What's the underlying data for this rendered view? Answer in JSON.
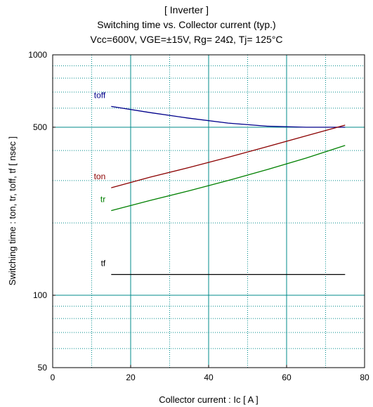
{
  "chart_data": {
    "type": "line",
    "title_lines": [
      "[ Inverter ]",
      "Switching time  vs.  Collector current  (typ.)",
      "Vcc=600V, VGE=±15V, Rg= 24Ω, Tj= 125°C"
    ],
    "xlabel": "Collector current  :  Ic  [ A ]",
    "ylabel": "Switching time  :  ton, tr, toff, tf  [ nsec ]",
    "xlim": [
      0,
      80
    ],
    "ylim": [
      50,
      1000
    ],
    "yscale": "log",
    "x_ticks": [
      "0",
      "20",
      "40",
      "60",
      "80"
    ],
    "x_tick_values": [
      0,
      20,
      40,
      60,
      80
    ],
    "y_ticks": [
      "50",
      "100",
      "500",
      "1000"
    ],
    "y_tick_values": [
      50,
      100,
      500,
      1000
    ],
    "grid": true,
    "series": [
      {
        "name": "toff",
        "color": "#00008b",
        "x": [
          15,
          25,
          35,
          45,
          55,
          65,
          75
        ],
        "y": [
          610,
          575,
          545,
          520,
          505,
          500,
          500
        ]
      },
      {
        "name": "ton",
        "color": "#8b0000",
        "x": [
          15,
          25,
          35,
          45,
          55,
          65,
          75
        ],
        "y": [
          280,
          310,
          340,
          375,
          415,
          460,
          510
        ]
      },
      {
        "name": "tr",
        "color": "#008000",
        "x": [
          15,
          25,
          35,
          45,
          55,
          65,
          75
        ],
        "y": [
          225,
          248,
          272,
          300,
          333,
          372,
          420
        ]
      },
      {
        "name": "tf",
        "color": "#000000",
        "x": [
          15,
          25,
          35,
          45,
          55,
          65,
          75
        ],
        "y": [
          122,
          122,
          122,
          122,
          122,
          122,
          122
        ]
      }
    ]
  }
}
